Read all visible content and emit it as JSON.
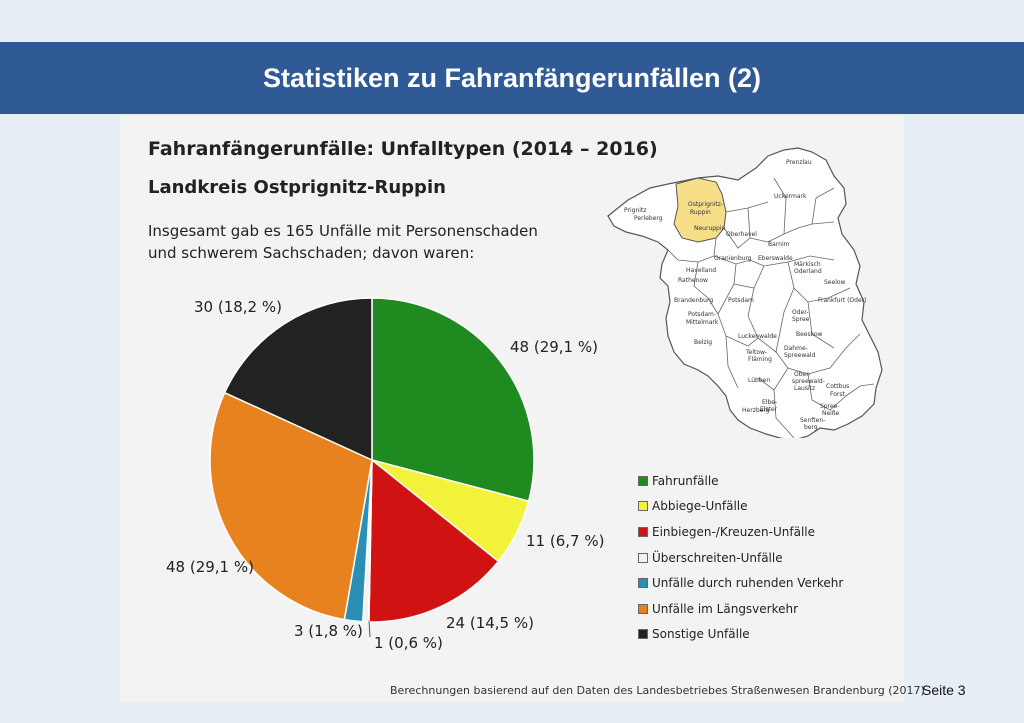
{
  "slide": {
    "title": "Statistiken zu Fahranfängerunfällen (2)",
    "page": "Seite 3",
    "background": "#e8eef5",
    "banner_color": "#2f5a95"
  },
  "panel": {
    "title": "Fahranfängerunfälle: Unfalltypen (2014 – 2016)",
    "subtitle": "Landkreis Ostprignitz-Ruppin",
    "intro_line1": "Insgesamt gab es 165 Unfälle mit Personenschaden",
    "intro_line2": "und schwerem Sachschaden; davon waren:",
    "source": "Berechnungen basierend auf den Daten des Landesbetriebes Straßenwesen Brandenburg (2017)"
  },
  "map": {
    "highlight_color": "#f7df8a",
    "labels": [
      "Prignitz",
      "Perleberg",
      "Ostprignitz-",
      "Ruppin",
      "Neuruppin",
      "Prenzlau",
      "Uckermark",
      "Oberhavel",
      "Barnim",
      "Eberswalde",
      "Oranienburg",
      "Märkisch",
      "Oderland",
      "Havelland",
      "Rathenow",
      "Seelow",
      "Brandenburg",
      "Potsdam",
      "Frankfurt (Oder)",
      "Potsdam-",
      "Mittelmark",
      "Oder-",
      "Spree",
      "Beeskow",
      "Luckenwalde",
      "Teltow-",
      "Fläming",
      "Dahme-",
      "Spreewald",
      "Belzig",
      "Lübben",
      "Ober-",
      "spreewald-",
      "Lausitz",
      "Cottbus",
      "Forst",
      "Elbe-",
      "Elster",
      "Herzberg",
      "Spree-",
      "Neiße",
      "Senften-",
      "berg"
    ]
  },
  "chart_data": {
    "type": "pie",
    "total": 165,
    "slices": [
      {
        "name": "Fahrunfälle",
        "value": 48,
        "label": "48 (29,1 %)",
        "color": "#1f8a1f"
      },
      {
        "name": "Abbiege-Unfälle",
        "value": 11,
        "label": "11 (6,7 %)",
        "color": "#f2f23a"
      },
      {
        "name": "Einbiegen-/Kreuzen-Unfälle",
        "value": 24,
        "label": "24 (14,5 %)",
        "color": "#d11212"
      },
      {
        "name": "Überschreiten-Unfälle",
        "value": 1,
        "label": "1 (0,6 %)",
        "color": "#f2f2f2"
      },
      {
        "name": "Unfälle durch ruhenden Verkehr",
        "value": 3,
        "label": "3 (1,8 %)",
        "color": "#2b8fb5"
      },
      {
        "name": "Unfälle im Längsverkehr",
        "value": 48,
        "label": "48 (29,1 %)",
        "color": "#e8821f"
      },
      {
        "name": "Sonstige Unfälle",
        "value": 30,
        "label": "30 (18,2 %)",
        "color": "#222222"
      }
    ],
    "legend_position": "bottom-right"
  }
}
